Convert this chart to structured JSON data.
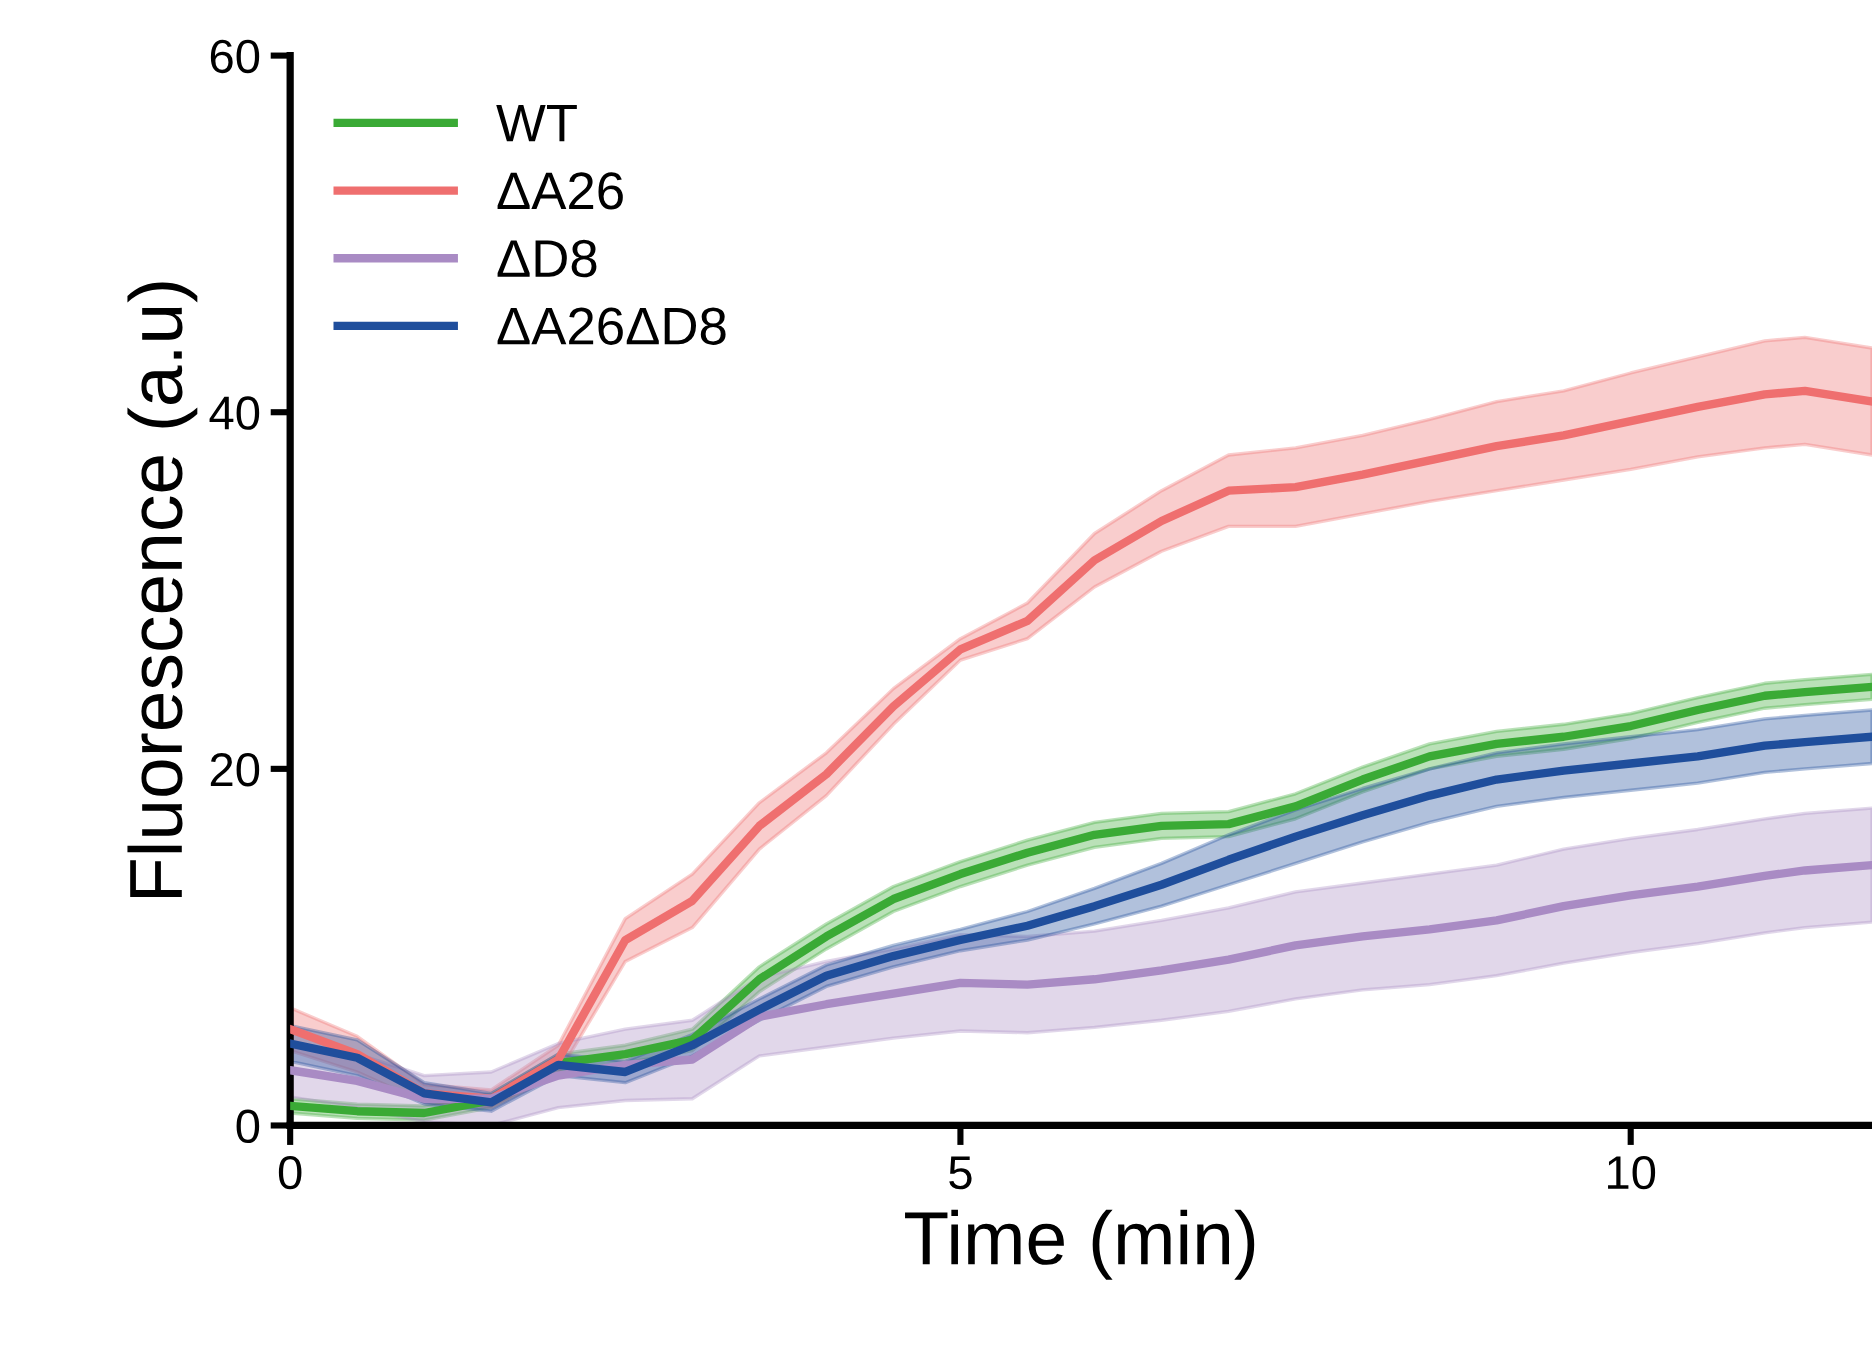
{
  "chart_data": {
    "type": "line",
    "xlabel": "Time (min)",
    "ylabel": "Fluorescence (a.u)",
    "x": [
      0,
      0.5,
      1,
      1.5,
      2,
      2.5,
      3,
      3.5,
      4,
      4.5,
      5,
      5.5,
      6,
      6.5,
      7,
      7.5,
      8,
      8.5,
      9,
      9.5,
      10,
      10.5,
      11,
      11.3,
      11.8
    ],
    "xlim": [
      0,
      11.8
    ],
    "xticks": [
      0,
      5,
      10
    ],
    "ylim": [
      0,
      60
    ],
    "yticks": [
      0,
      20,
      40,
      60
    ],
    "grid": false,
    "legend": "top left",
    "marker": "none",
    "line_style": "solid",
    "series": [
      {
        "name": "WT",
        "color": "#3aaa35",
        "values": [
          1.1,
          0.8,
          0.7,
          1.4,
          3.5,
          4.0,
          4.8,
          8.2,
          10.6,
          12.7,
          14.1,
          15.3,
          16.3,
          16.8,
          16.9,
          17.9,
          19.4,
          20.7,
          21.4,
          21.8,
          22.4,
          23.3,
          24.1,
          24.3,
          24.6
        ],
        "lower": [
          0.7,
          0.4,
          0.3,
          1.0,
          3.0,
          3.5,
          4.2,
          7.5,
          9.9,
          12.0,
          13.4,
          14.6,
          15.6,
          16.1,
          16.2,
          17.2,
          18.7,
          20.0,
          20.7,
          21.1,
          21.7,
          22.6,
          23.4,
          23.6,
          23.9
        ],
        "upper": [
          1.5,
          1.2,
          1.1,
          1.8,
          4.0,
          4.5,
          5.4,
          8.9,
          11.3,
          13.4,
          14.8,
          16.0,
          17.0,
          17.5,
          17.6,
          18.6,
          20.1,
          21.4,
          22.1,
          22.5,
          23.1,
          24.0,
          24.8,
          25.0,
          25.3
        ]
      },
      {
        "name": "ΔA26",
        "color": "#ef6f6f",
        "values": [
          5.4,
          4.0,
          1.8,
          1.5,
          3.7,
          10.4,
          12.6,
          16.8,
          19.7,
          23.5,
          26.7,
          28.3,
          31.7,
          33.9,
          35.6,
          35.8,
          36.5,
          37.3,
          38.1,
          38.7,
          39.5,
          40.3,
          41.0,
          41.2,
          40.6
        ],
        "lower": [
          4.2,
          3.0,
          1.3,
          1.0,
          2.9,
          9.2,
          11.1,
          15.5,
          18.5,
          22.5,
          26.1,
          27.3,
          30.2,
          32.2,
          33.6,
          33.6,
          34.3,
          35.0,
          35.6,
          36.2,
          36.8,
          37.5,
          38.0,
          38.2,
          37.6
        ],
        "upper": [
          6.6,
          5.0,
          2.3,
          2.0,
          4.5,
          11.6,
          14.1,
          18.1,
          20.9,
          24.5,
          27.3,
          29.3,
          33.2,
          35.6,
          37.6,
          38.0,
          38.7,
          39.6,
          40.6,
          41.2,
          42.2,
          43.1,
          44.0,
          44.2,
          43.6
        ]
      },
      {
        "name": "ΔD8",
        "color": "#a98bc4",
        "values": [
          3.1,
          2.5,
          1.5,
          1.5,
          2.8,
          3.4,
          3.7,
          6.1,
          6.8,
          7.4,
          8.0,
          7.9,
          8.2,
          8.7,
          9.3,
          10.1,
          10.6,
          11.0,
          11.5,
          12.3,
          12.9,
          13.4,
          14.0,
          14.3,
          14.6
        ],
        "lower": [
          1.6,
          1.0,
          0.2,
          0.0,
          1.0,
          1.4,
          1.5,
          3.9,
          4.4,
          4.9,
          5.3,
          5.2,
          5.5,
          5.9,
          6.4,
          7.1,
          7.6,
          7.9,
          8.4,
          9.1,
          9.7,
          10.2,
          10.8,
          11.1,
          11.4
        ],
        "upper": [
          4.6,
          4.0,
          2.8,
          3.0,
          4.6,
          5.4,
          5.9,
          8.3,
          9.2,
          9.9,
          10.7,
          10.6,
          10.9,
          11.5,
          12.2,
          13.1,
          13.6,
          14.1,
          14.6,
          15.5,
          16.1,
          16.6,
          17.2,
          17.5,
          17.8
        ]
      },
      {
        "name": "ΔA26ΔD8",
        "color": "#1f4e9c",
        "values": [
          4.6,
          3.8,
          1.8,
          1.3,
          3.4,
          3.0,
          4.5,
          6.5,
          8.4,
          9.5,
          10.4,
          11.2,
          12.3,
          13.5,
          14.9,
          16.2,
          17.4,
          18.5,
          19.4,
          19.9,
          20.3,
          20.7,
          21.3,
          21.5,
          21.8
        ],
        "lower": [
          3.6,
          2.8,
          1.2,
          0.8,
          2.8,
          2.4,
          3.9,
          5.9,
          7.8,
          8.9,
          9.8,
          10.4,
          11.3,
          12.3,
          13.5,
          14.7,
          15.9,
          17.0,
          17.9,
          18.4,
          18.8,
          19.2,
          19.8,
          20.0,
          20.3
        ],
        "upper": [
          5.6,
          4.8,
          2.4,
          1.8,
          4.0,
          3.6,
          5.1,
          7.1,
          9.0,
          10.1,
          11.0,
          12.0,
          13.3,
          14.7,
          16.3,
          17.7,
          18.9,
          20.0,
          20.9,
          21.4,
          21.8,
          22.2,
          22.8,
          23.0,
          23.3
        ]
      }
    ]
  }
}
